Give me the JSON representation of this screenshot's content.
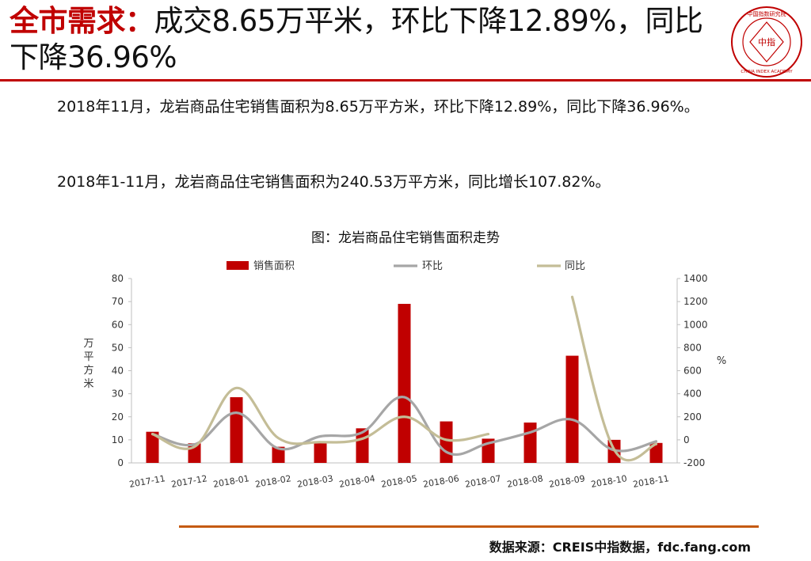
{
  "header": {
    "title_lead": "全市需求：",
    "title_rest": "成交8.65万平米，环比下降12.89%，同比下降36.96%"
  },
  "logo": {
    "top_text": "中国指数研究院",
    "center_text": "中指",
    "bottom_text": "CHINA INDEX ACADEMY"
  },
  "body": {
    "para1": "2018年11月，龙岩商品住宅销售面积为8.65万平方米，环比下降12.89%，同比下降36.96%。",
    "para2": "2018年1-11月，龙岩商品住宅销售面积为240.53万平方米，同比增长107.82%。"
  },
  "chart_title": "图：龙岩商品住宅销售面积走势",
  "footer": {
    "source": "数据来源：CREIS中指数据，fdc.fang.com"
  },
  "colors": {
    "brand_red": "#c00000",
    "bar": "#c00000",
    "mom_line": "#a6a6a6",
    "yoy_line": "#c4bd97",
    "bottom_rule": "#c55a11"
  },
  "chart_data": {
    "type": "bar",
    "categories": [
      "2017-11",
      "2017-12",
      "2018-01",
      "2018-02",
      "2018-03",
      "2018-04",
      "2018-05",
      "2018-06",
      "2018-07",
      "2018-08",
      "2018-09",
      "2018-10",
      "2018-11"
    ],
    "series": [
      {
        "name": "销售面积",
        "type": "bar",
        "axis": "left",
        "values": [
          13.5,
          8.5,
          28.5,
          7,
          9,
          15,
          69,
          18,
          10.5,
          17.5,
          46.5,
          10,
          8.65
        ]
      },
      {
        "name": "环比",
        "type": "line",
        "axis": "right",
        "values": [
          50,
          -40,
          235,
          -75,
          30,
          65,
          370,
          -105,
          -30,
          65,
          175,
          -90,
          -13
        ]
      },
      {
        "name": "同比",
        "type": "line",
        "axis": "right",
        "values": [
          50,
          -60,
          450,
          15,
          -20,
          10,
          200,
          0,
          50,
          null,
          1240,
          -85,
          -37
        ]
      }
    ],
    "ylabel": "万平方米",
    "y2label": "%",
    "ylim": [
      0,
      80
    ],
    "y2lim": [
      -200,
      1400
    ],
    "yticks": [
      0,
      10,
      20,
      30,
      40,
      50,
      60,
      70,
      80
    ],
    "y2ticks": [
      -200,
      0,
      200,
      400,
      600,
      800,
      1000,
      1200,
      1400
    ],
    "legend_position": "top",
    "grid": false
  }
}
